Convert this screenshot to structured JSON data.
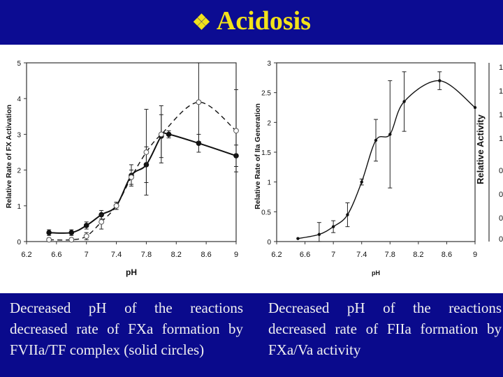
{
  "title": {
    "bullet": "❖",
    "text": "Acidosis"
  },
  "captions": {
    "left": [
      "Decreased pH of the reactions",
      "decreased rate of FXa formation by",
      "FVIIa/TF complex (solid circles)"
    ],
    "right": [
      "Decreased pH of the reactions",
      "decreased rate of FIIa formation by",
      "FXa/Va activity"
    ]
  },
  "chart_data": [
    {
      "type": "line",
      "xlabel": "pH",
      "ylabel": "Relative Rate of FX Activation",
      "xlim": [
        6.2,
        9
      ],
      "ylim": [
        0,
        5
      ],
      "x_ticks": [
        "6.2",
        "6.6",
        "7",
        "7.4",
        "7.8",
        "8.2",
        "8.6",
        "9"
      ],
      "y_ticks": [
        "0",
        "1",
        "2",
        "3",
        "4",
        "5"
      ],
      "series": [
        {
          "style": "solid",
          "marker": "filled-circle",
          "x": [
            6.5,
            6.8,
            7.0,
            7.2,
            7.4,
            7.6,
            7.8,
            8.0,
            8.1,
            8.5,
            9.0
          ],
          "y": [
            0.25,
            0.25,
            0.45,
            0.75,
            1.0,
            1.85,
            2.15,
            2.95,
            3.0,
            2.75,
            2.4
          ],
          "err": [
            0.08,
            0.08,
            0.1,
            0.12,
            0.1,
            0.3,
            0.5,
            0.6,
            0.1,
            0.25,
            0.3
          ]
        },
        {
          "style": "dashed",
          "marker": "open-circle",
          "x": [
            6.5,
            6.8,
            7.0,
            7.2,
            7.4,
            7.6,
            7.8,
            8.0,
            8.5,
            9.0
          ],
          "y": [
            0.05,
            0.05,
            0.15,
            0.55,
            1.0,
            1.8,
            2.5,
            3.0,
            3.9,
            3.1
          ],
          "err": [
            0.05,
            0.05,
            0.1,
            0.2,
            0.1,
            0.2,
            1.2,
            0.8,
            1.1,
            1.15
          ]
        }
      ]
    },
    {
      "type": "line",
      "xlabel": "pH",
      "ylabel": "Relative Rate of IIa Generation",
      "xlim": [
        6.2,
        9
      ],
      "ylim": [
        0,
        3
      ],
      "x_ticks": [
        "6.2",
        "6.6",
        "7",
        "7.4",
        "7.8",
        "8.2",
        "8.6",
        "9"
      ],
      "y_ticks": [
        "0",
        "0.5",
        "1",
        "1.5",
        "2",
        "2.5",
        "3"
      ],
      "series": [
        {
          "style": "solid",
          "marker": "small-filled-circle",
          "x": [
            6.5,
            6.8,
            7.0,
            7.2,
            7.4,
            7.6,
            7.8,
            8.0,
            8.5,
            9.0
          ],
          "y": [
            0.05,
            0.12,
            0.25,
            0.45,
            1.0,
            1.7,
            1.8,
            2.35,
            2.7,
            2.25
          ],
          "err": [
            0.02,
            0.2,
            0.1,
            0.2,
            0.05,
            0.35,
            0.9,
            0.5,
            0.15,
            0.02
          ]
        }
      ]
    },
    {
      "type": "line",
      "ylabel": "Relative Activity",
      "partial": true,
      "y_ticks": [
        "1",
        "1",
        "1",
        "1",
        "0",
        "0",
        "0",
        "0"
      ]
    }
  ]
}
